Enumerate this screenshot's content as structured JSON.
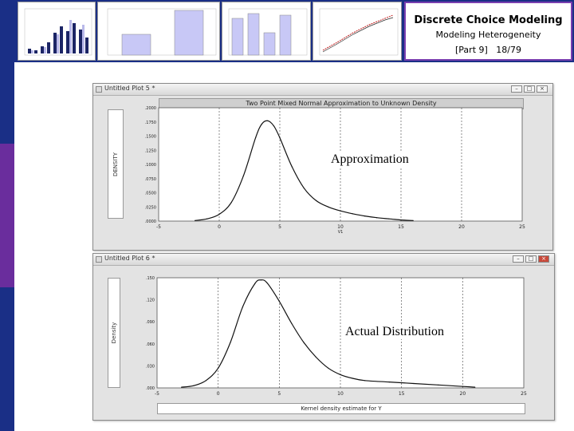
{
  "slide": {
    "title": "Discrete Choice Modeling",
    "subtitle": "Modeling Heterogeneity",
    "part": "[Part 9]",
    "page": "18/79"
  },
  "colors": {
    "navy": "#1a2f86",
    "purple": "#6a2d9d",
    "title_border": "#7a3fb0"
  },
  "top_window": {
    "title": "Untitled Plot 5 *",
    "plot_title": "Two Point Mixed Normal Approximation to Unknown Density",
    "ylabel": "DENSITY",
    "xlabel": "V1",
    "overlay": "Approximation",
    "chart_data": {
      "type": "line",
      "xlim": [
        -5,
        25
      ],
      "ylim": [
        0,
        0.2
      ],
      "x_ticks": [
        "-5",
        "0",
        "5",
        "10",
        "15",
        "20",
        "25"
      ],
      "y_ticks": [
        ".0000",
        ".0250",
        ".0500",
        ".0750",
        ".1000",
        ".1250",
        ".1500",
        ".1750",
        ".2000"
      ],
      "x": [
        -2,
        -1,
        0,
        1,
        2,
        3,
        3.5,
        4,
        4.5,
        5,
        6,
        7,
        8,
        9,
        10,
        11,
        12,
        13,
        14,
        15,
        16
      ],
      "y": [
        0.001,
        0.004,
        0.012,
        0.033,
        0.08,
        0.147,
        0.171,
        0.177,
        0.168,
        0.147,
        0.096,
        0.058,
        0.036,
        0.025,
        0.018,
        0.013,
        0.009,
        0.006,
        0.004,
        0.002,
        0.001
      ],
      "grid": true
    }
  },
  "bottom_window": {
    "title": "Untitled Plot 6 *",
    "ylabel": "Density",
    "xlabel": "Kernel density estimate for   Y",
    "overlay": "Actual Distribution",
    "chart_data": {
      "type": "line",
      "xlim": [
        -5,
        25
      ],
      "ylim": [
        0,
        0.15
      ],
      "x_ticks": [
        "-5",
        "0",
        "5",
        "10",
        "15",
        "20",
        "25"
      ],
      "y_ticks": [
        ".000",
        ".030",
        ".060",
        ".090",
        ".120",
        ".150"
      ],
      "x": [
        -3,
        -2,
        -1,
        0,
        1,
        2,
        3,
        3.5,
        4,
        5,
        6,
        7,
        8,
        9,
        10,
        11,
        12,
        14,
        16,
        18,
        20,
        21
      ],
      "y": [
        0.001,
        0.003,
        0.01,
        0.027,
        0.062,
        0.11,
        0.142,
        0.147,
        0.143,
        0.118,
        0.088,
        0.062,
        0.042,
        0.027,
        0.018,
        0.013,
        0.01,
        0.008,
        0.006,
        0.004,
        0.002,
        0.001
      ],
      "grid": true
    }
  }
}
